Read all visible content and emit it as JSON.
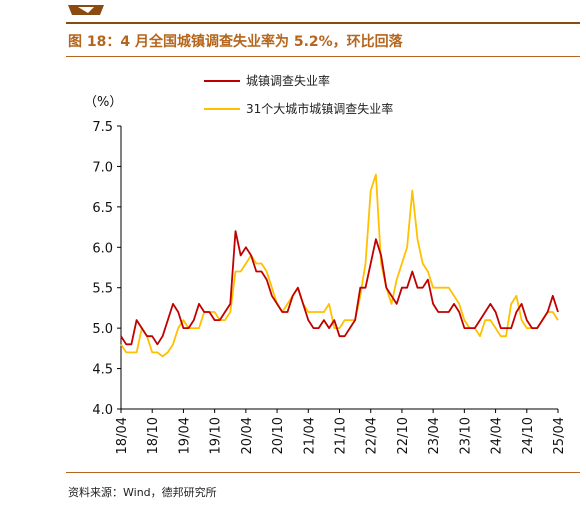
{
  "figure": {
    "title": "图 18：4 月全国城镇调查失业率为 5.2%，环比回落",
    "source": "资料来源：Wind，德邦研究所"
  },
  "colors": {
    "brand": "#b5651d",
    "brand_dark": "#8a4a10",
    "series_red": "#c00000",
    "series_yellow": "#ffc000"
  },
  "chart_data": {
    "type": "line",
    "y_unit_label": "（%）",
    "ylim": [
      4.0,
      7.5
    ],
    "yticks": [
      "4.0",
      "4.5",
      "5.0",
      "5.5",
      "6.0",
      "6.5",
      "7.0",
      "7.5"
    ],
    "x_start": "2018-04",
    "xticks": [
      "18/04",
      "18/10",
      "19/04",
      "19/10",
      "20/04",
      "20/10",
      "21/04",
      "21/10",
      "22/04",
      "22/10",
      "23/04",
      "23/10",
      "24/04",
      "24/10",
      "25/04"
    ],
    "grid": false,
    "legend_position": "top",
    "series": [
      {
        "name": "城镇调查失业率",
        "color": "#c00000",
        "values": [
          4.9,
          4.8,
          4.8,
          5.1,
          5.0,
          4.9,
          4.9,
          4.8,
          4.9,
          5.1,
          5.3,
          5.2,
          5.0,
          5.0,
          5.1,
          5.3,
          5.2,
          5.2,
          5.1,
          5.1,
          5.2,
          5.3,
          6.2,
          5.9,
          6.0,
          5.9,
          5.7,
          5.7,
          5.6,
          5.4,
          5.3,
          5.2,
          5.2,
          5.4,
          5.5,
          5.3,
          5.1,
          5.0,
          5.0,
          5.1,
          5.0,
          5.1,
          4.9,
          4.9,
          5.0,
          5.1,
          5.5,
          5.5,
          5.8,
          6.1,
          5.9,
          5.5,
          5.4,
          5.3,
          5.5,
          5.5,
          5.7,
          5.5,
          5.5,
          5.6,
          5.3,
          5.2,
          5.2,
          5.2,
          5.3,
          5.2,
          5.0,
          5.0,
          5.0,
          5.1,
          5.2,
          5.3,
          5.2,
          5.0,
          5.0,
          5.0,
          5.2,
          5.3,
          5.1,
          5.0,
          5.0,
          5.1,
          5.2,
          5.4,
          5.2
        ]
      },
      {
        "name": "31个大城市城镇调查失业率",
        "color": "#ffc000",
        "values": [
          4.8,
          4.7,
          4.7,
          4.7,
          5.0,
          4.9,
          4.7,
          4.7,
          4.65,
          4.7,
          4.8,
          5.0,
          5.1,
          5.0,
          5.0,
          5.0,
          5.2,
          5.2,
          5.2,
          5.1,
          5.1,
          5.2,
          5.7,
          5.7,
          5.8,
          5.9,
          5.8,
          5.8,
          5.7,
          5.5,
          5.3,
          5.2,
          5.3,
          5.4,
          5.5,
          5.3,
          5.2,
          5.2,
          5.2,
          5.2,
          5.3,
          5.0,
          5.0,
          5.1,
          5.1,
          5.1,
          5.4,
          5.8,
          6.7,
          6.9,
          5.8,
          5.5,
          5.3,
          5.6,
          5.8,
          6.0,
          6.7,
          6.1,
          5.8,
          5.7,
          5.5,
          5.5,
          5.5,
          5.5,
          5.4,
          5.3,
          5.1,
          5.0,
          5.0,
          4.9,
          5.1,
          5.1,
          5.0,
          4.9,
          4.9,
          5.3,
          5.4,
          5.1,
          5.0,
          5.0,
          5.0,
          5.1,
          5.2,
          5.2,
          5.1
        ]
      }
    ]
  }
}
